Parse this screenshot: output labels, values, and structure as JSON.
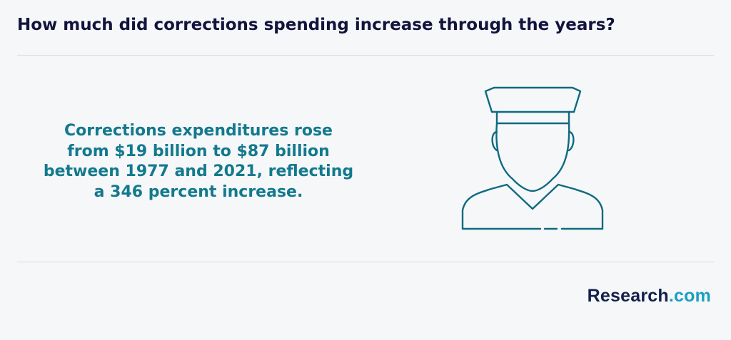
{
  "header": {
    "title": "How much did corrections spending increase through the years?"
  },
  "main": {
    "statement": "Corrections expenditures rose from $19 billion to $87 billion between 1977 and 2021, reflecting a 346 percent increase.",
    "illustration_icon": "corrections-officer-icon"
  },
  "footer": {
    "brand_name": "Research",
    "brand_tld": ".com"
  },
  "colors": {
    "background": "#f5f7f9",
    "title": "#13143c",
    "accent_teal": "#13798d",
    "brand_dark": "#13214a",
    "brand_light": "#1a9fc2",
    "icon_stroke": "#0f6a80"
  }
}
